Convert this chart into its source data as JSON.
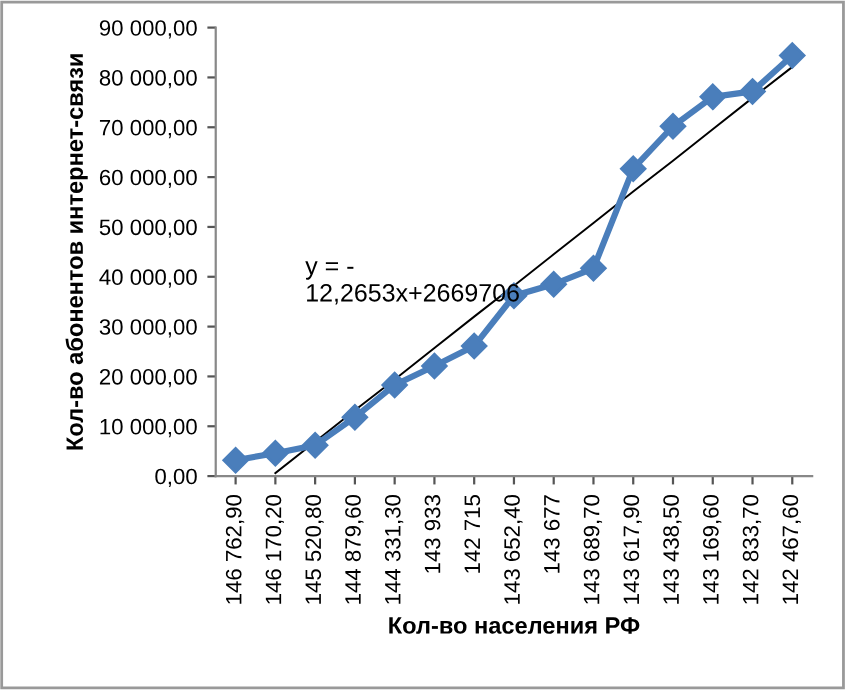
{
  "chart_data": {
    "type": "line",
    "xlabel": "Кол-во населения РФ",
    "ylabel": "Кол-во абонентов интернет-связи",
    "categories": [
      "146 762,90",
      "146 170,20",
      "145 520,80",
      "144 879,60",
      "144 331,30",
      "143 933",
      "142 715",
      "143 652,40",
      "143 677",
      "143 689,70",
      "143 617,90",
      "143 438,50",
      "143 169,60",
      "142 833,70",
      "142 467,60"
    ],
    "series": [
      {
        "color": "#4a7ebb",
        "marker": "diamond",
        "values": [
          3200,
          4600,
          6200,
          11800,
          18300,
          22100,
          26100,
          36200,
          38500,
          41700,
          61700,
          70200,
          76100,
          77200,
          84400
        ]
      },
      {
        "color": "#000000",
        "marker": "none",
        "values": [
          null,
          600,
          6900,
          13200,
          19400,
          25700,
          32000,
          38200,
          44500,
          50800,
          57100,
          63300,
          69600,
          75900,
          82100
        ]
      }
    ],
    "ylim": [
      0,
      90000
    ],
    "yticks": [
      {
        "value": 0,
        "label": "0,00"
      },
      {
        "value": 10000,
        "label": "10 000,00"
      },
      {
        "value": 20000,
        "label": "20 000,00"
      },
      {
        "value": 30000,
        "label": "30 000,00"
      },
      {
        "value": 40000,
        "label": "40 000,00"
      },
      {
        "value": 50000,
        "label": "50 000,00"
      },
      {
        "value": 60000,
        "label": "60 000,00"
      },
      {
        "value": 70000,
        "label": "70 000,00"
      },
      {
        "value": 80000,
        "label": "80 000,00"
      },
      {
        "value": 90000,
        "label": "90 000,00"
      }
    ],
    "annotations": [
      "y = -\n12,2653x+2669706"
    ],
    "grid": false,
    "legend": false,
    "line_style": "solid"
  }
}
